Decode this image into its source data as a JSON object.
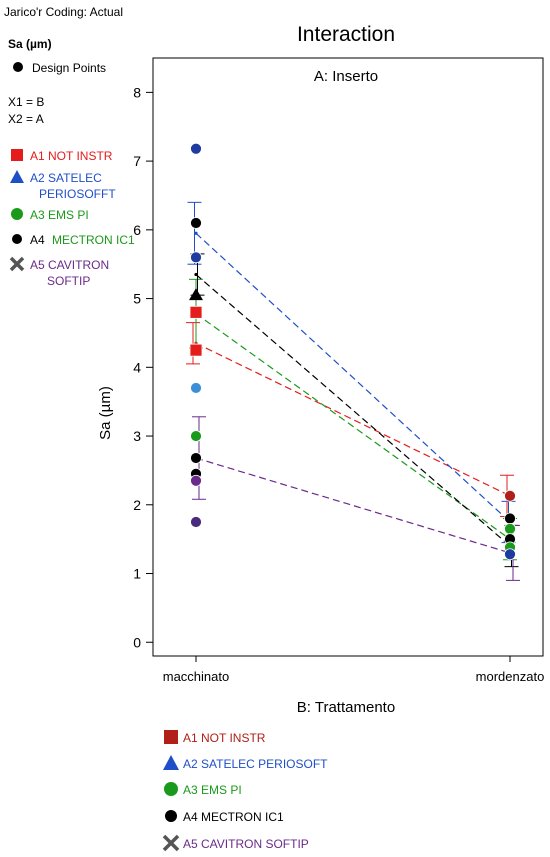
{
  "coding_text": "Jarico'r Coding: Actual",
  "response_label": "Sa (µm)",
  "design_points_label": "Design Points",
  "factor_x1": "X1 = B",
  "factor_x2": "X2 = A",
  "legend_left": [
    {
      "lines": [
        "A1 NOT INSTR"
      ],
      "color": "#e51c1c",
      "marker": "square"
    },
    {
      "lines": [
        "A2 SATELEC",
        "PERIOSOFFT"
      ],
      "color": "#1f4fc8",
      "marker": "triangle"
    },
    {
      "lines": [
        "A3 EMS PI"
      ],
      "color": "#1a9a1a",
      "marker": "circle"
    },
    {
      "prefix": "A4 ",
      "lines": [
        "MECTRON IC1"
      ],
      "color": "#1a9a1a",
      "marker": "dot"
    },
    {
      "lines": [
        "A5 CAVITRON",
        "SOFTIP"
      ],
      "color": "#6a2a8a",
      "marker": "cross"
    }
  ],
  "legend_bottom": [
    {
      "label": "A1 NOT INSTR",
      "color": "#b02018",
      "marker": "square"
    },
    {
      "label": "A2 SATELEC PERIOSOFT",
      "color": "#1f4fc8",
      "marker": "triangle"
    },
    {
      "label": "A3 EMS PI",
      "color": "#1a9a1a",
      "marker": "circle"
    },
    {
      "label": "A4 MECTRON IC1",
      "color": "#000000",
      "marker": "dot"
    },
    {
      "label": "A5 CAVITRON SOFTIP",
      "color": "#6a2a8a",
      "marker": "cross"
    }
  ],
  "chart_data": {
    "type": "line",
    "title": "Interaction",
    "subtitle": "A: Inserto",
    "xlabel": "B: Trattamento",
    "ylabel": "Sa (µm)",
    "categories": [
      "macchinato",
      "mordenzato"
    ],
    "ylim": [
      -0.2,
      8.5
    ],
    "yticks": [
      0,
      1,
      2,
      3,
      4,
      5,
      6,
      7,
      8
    ],
    "series": [
      {
        "name": "A1 NOT INSTR",
        "color": "#e51c1c",
        "values": [
          4.35,
          2.13
        ],
        "errors": [
          0.3,
          0.3
        ]
      },
      {
        "name": "A2 SATELEC PERIOSOFT",
        "color": "#1f4fc8",
        "values": [
          5.95,
          1.75
        ],
        "errors": [
          0.45,
          0.3
        ]
      },
      {
        "name": "A3 EMS PI",
        "color": "#1a9a1a",
        "values": [
          4.78,
          1.5
        ],
        "errors": [
          0.5,
          0.3
        ]
      },
      {
        "name": "A4 MECTRON IC1",
        "color": "#000000",
        "values": [
          5.35,
          1.4
        ],
        "errors": [
          0.3,
          0.3
        ]
      },
      {
        "name": "A5 CAVITRON SOFTIP",
        "color": "#6a2a8a",
        "values": [
          2.68,
          1.3
        ],
        "errors": [
          0.6,
          0.4
        ]
      }
    ],
    "design_points": [
      {
        "x": "macchinato",
        "y": 7.18,
        "color": "#1f3aa0",
        "shape": "circle"
      },
      {
        "x": "macchinato",
        "y": 6.1,
        "color": "#000000",
        "shape": "circle"
      },
      {
        "x": "macchinato",
        "y": 5.6,
        "color": "#1f3aa0",
        "shape": "circle"
      },
      {
        "x": "macchinato",
        "y": 5.05,
        "color": "#000000",
        "shape": "triangle"
      },
      {
        "x": "macchinato",
        "y": 4.8,
        "color": "#e51c1c",
        "shape": "square"
      },
      {
        "x": "macchinato",
        "y": 4.25,
        "color": "#e51c1c",
        "shape": "square"
      },
      {
        "x": "macchinato",
        "y": 3.7,
        "color": "#3a8fd8",
        "shape": "circle"
      },
      {
        "x": "macchinato",
        "y": 3.0,
        "color": "#1a9a1a",
        "shape": "circle"
      },
      {
        "x": "macchinato",
        "y": 2.68,
        "color": "#000000",
        "shape": "circle"
      },
      {
        "x": "macchinato",
        "y": 2.45,
        "color": "#000000",
        "shape": "circle"
      },
      {
        "x": "macchinato",
        "y": 2.35,
        "color": "#6a2a8a",
        "shape": "circle"
      },
      {
        "x": "macchinato",
        "y": 1.75,
        "color": "#4a2a7a",
        "shape": "circle"
      },
      {
        "x": "mordenzato",
        "y": 2.13,
        "color": "#b02018",
        "shape": "circle"
      },
      {
        "x": "mordenzato",
        "y": 1.8,
        "color": "#000000",
        "shape": "circle"
      },
      {
        "x": "mordenzato",
        "y": 1.65,
        "color": "#1a9a1a",
        "shape": "circle"
      },
      {
        "x": "mordenzato",
        "y": 1.5,
        "color": "#000000",
        "shape": "circle"
      },
      {
        "x": "mordenzato",
        "y": 1.38,
        "color": "#1a9a1a",
        "shape": "circle"
      },
      {
        "x": "mordenzato",
        "y": 1.28,
        "color": "#1f3aa0",
        "shape": "circle"
      }
    ]
  }
}
